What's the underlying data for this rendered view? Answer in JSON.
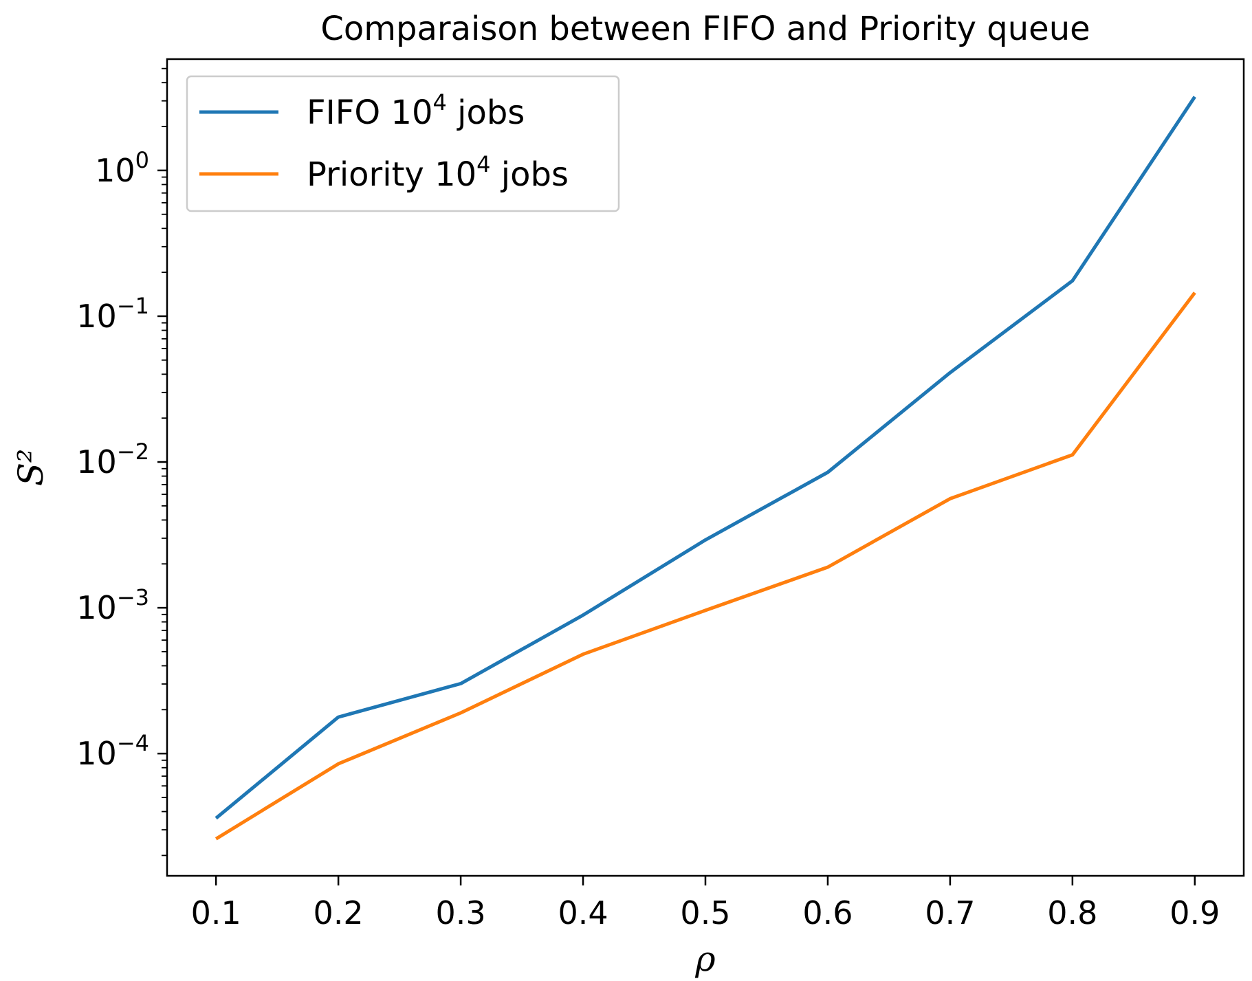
{
  "chart_data": {
    "type": "line",
    "title": "Comparaison between FIFO and Priority queue",
    "xlabel": "ρ",
    "ylabel": "S²",
    "y_scale": "log",
    "xlim": [
      0.06,
      0.94
    ],
    "ylim": [
      1.45e-05,
      5.8
    ],
    "grid": false,
    "legend_position": "top-left",
    "x": [
      0.1,
      0.2,
      0.3,
      0.4,
      0.5,
      0.6,
      0.7,
      0.8,
      0.9
    ],
    "x_ticks": [
      "0.1",
      "0.2",
      "0.3",
      "0.4",
      "0.5",
      "0.6",
      "0.7",
      "0.8",
      "0.9"
    ],
    "y_ticks": [
      {
        "value": 1,
        "base": "10",
        "exp": "0"
      },
      {
        "value": 0.1,
        "base": "10",
        "exp": "−1"
      },
      {
        "value": 0.01,
        "base": "10",
        "exp": "−2"
      },
      {
        "value": 0.001,
        "base": "10",
        "exp": "−3"
      },
      {
        "value": 0.0001,
        "base": "10",
        "exp": "−4"
      }
    ],
    "series": [
      {
        "name": "FIFO 10⁴ jobs",
        "legend_base": "FIFO 10",
        "legend_exp": "4",
        "legend_suffix": " jobs",
        "color": "#1f77b4",
        "values": [
          3.6e-05,
          0.000178,
          0.000302,
          0.00089,
          0.00292,
          0.0085,
          0.041,
          0.175,
          3.2
        ]
      },
      {
        "name": "Priority 10⁴ jobs",
        "legend_base": "Priority 10",
        "legend_exp": "4",
        "legend_suffix": " jobs",
        "color": "#ff7f0e",
        "values": [
          2.6e-05,
          8.5e-05,
          0.00019,
          0.00048,
          0.00096,
          0.0019,
          0.0056,
          0.0112,
          0.145
        ]
      }
    ]
  }
}
